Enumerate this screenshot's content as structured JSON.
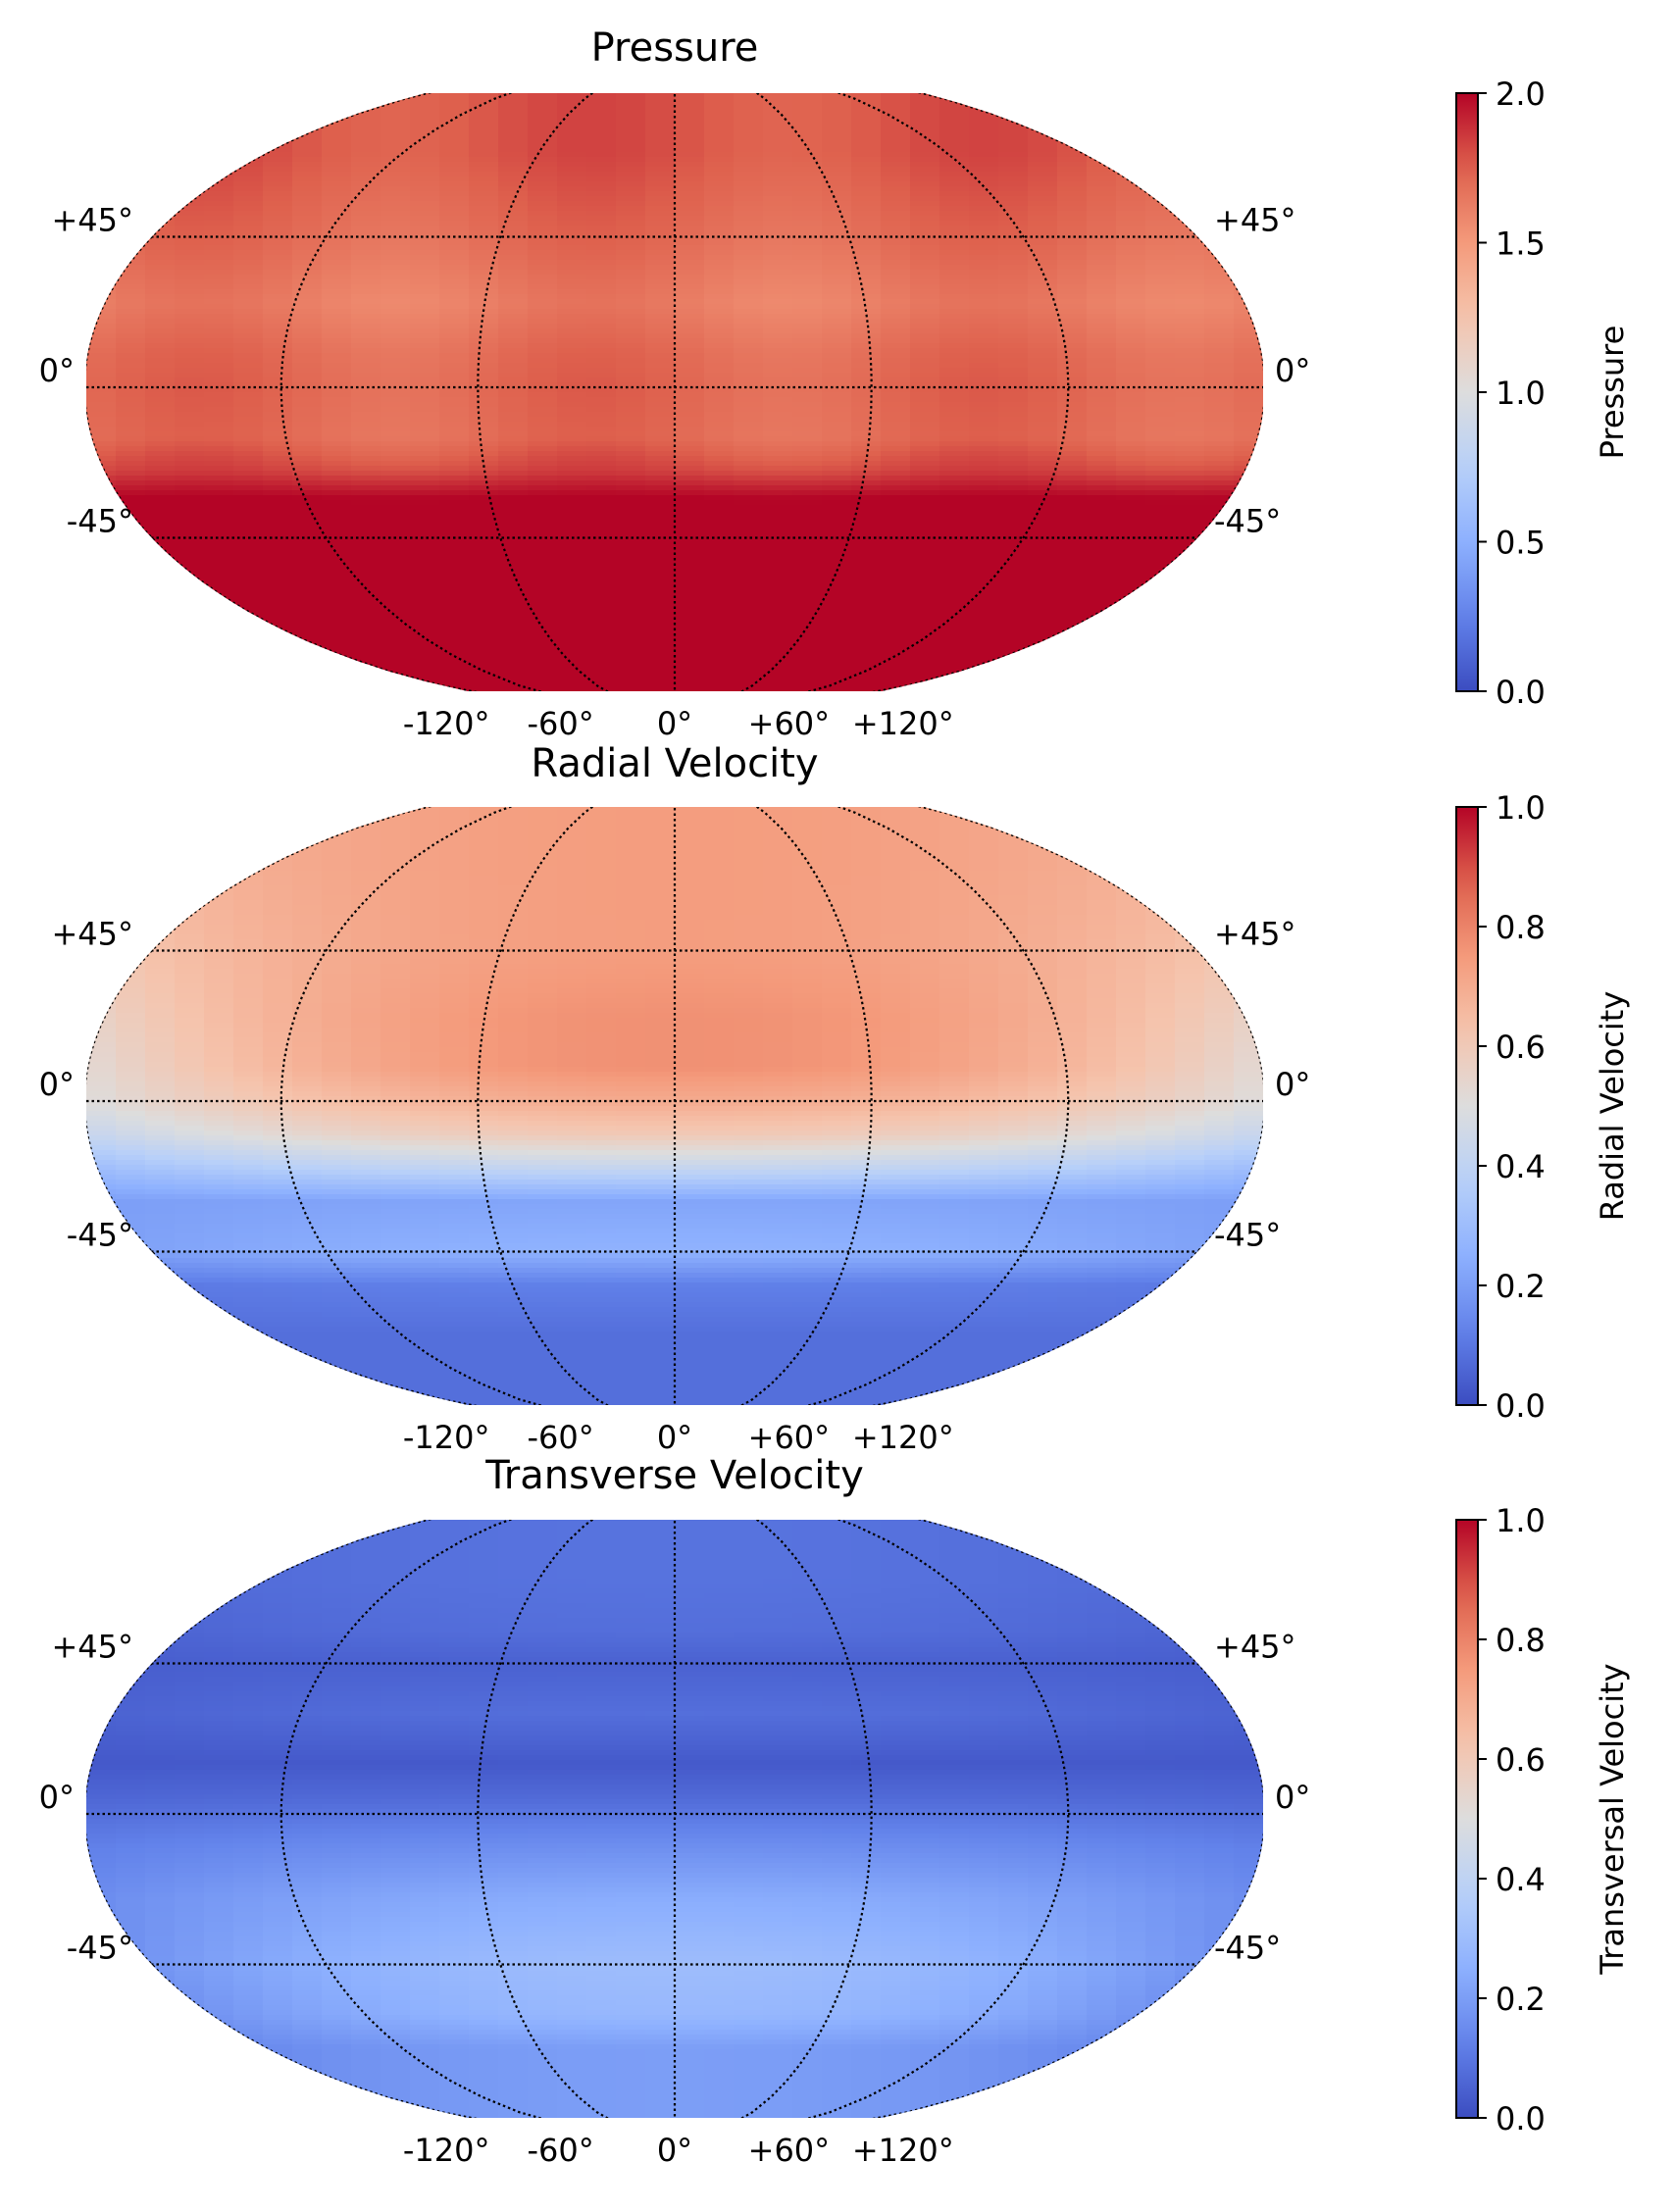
{
  "chart_data": [
    {
      "type": "heatmap",
      "projection": "kavrayskiy-like map (elliptical, truncated poles)",
      "title": "Pressure",
      "colormap": "coolwarm",
      "colorbar": {
        "label": "Pressure",
        "min": 0.0,
        "max": 2.0,
        "ticks": [
          "0.0",
          "0.5",
          "1.0",
          "1.5",
          "2.0"
        ]
      },
      "lat_ticks": {
        "left": [
          "+45°",
          "0°",
          "-45°"
        ],
        "right": [
          "+45°",
          "0°",
          "-45°"
        ]
      },
      "lon_ticks": [
        "-120°",
        "-60°",
        "0°",
        "+60°",
        "+120°"
      ],
      "field": {
        "lat_profile": [
          [
            70,
            1.78
          ],
          [
            45,
            1.7
          ],
          [
            25,
            1.62
          ],
          [
            10,
            1.7
          ],
          [
            0,
            1.72
          ],
          [
            -15,
            1.7
          ],
          [
            -25,
            1.82
          ],
          [
            -33,
            2.0
          ],
          [
            -70,
            2.0
          ]
        ],
        "lon_amplitude": 0.05
      }
    },
    {
      "type": "heatmap",
      "projection": "kavrayskiy-like map (elliptical, truncated poles)",
      "title": "Radial Velocity",
      "colormap": "coolwarm",
      "colorbar": {
        "label": "Radial Velocity",
        "min": 0.0,
        "max": 1.0,
        "ticks": [
          "0.0",
          "0.2",
          "0.4",
          "0.6",
          "0.8",
          "1.0"
        ]
      },
      "lat_ticks": {
        "left": [
          "+45°",
          "0°",
          "-45°"
        ],
        "right": [
          "+45°",
          "0°",
          "-45°"
        ]
      },
      "lon_ticks": [
        "-120°",
        "-60°",
        "0°",
        "+60°",
        "+120°"
      ],
      "field": {
        "lat_profile": [
          [
            70,
            0.74
          ],
          [
            45,
            0.74
          ],
          [
            25,
            0.77
          ],
          [
            10,
            0.77
          ],
          [
            0,
            0.7
          ],
          [
            -10,
            0.6
          ],
          [
            -20,
            0.42
          ],
          [
            -30,
            0.22
          ],
          [
            -45,
            0.26
          ],
          [
            -55,
            0.12
          ],
          [
            -70,
            0.08
          ]
        ],
        "edge_profile": [
          [
            70,
            0.64
          ],
          [
            45,
            0.6
          ],
          [
            25,
            0.55
          ],
          [
            10,
            0.52
          ],
          [
            0,
            0.5
          ],
          [
            -10,
            0.42
          ],
          [
            -20,
            0.3
          ],
          [
            -30,
            0.2
          ],
          [
            -45,
            0.2
          ],
          [
            -55,
            0.1
          ],
          [
            -70,
            0.08
          ]
        ],
        "lon_amplitude": 0.0
      }
    },
    {
      "type": "heatmap",
      "projection": "kavrayskiy-like map (elliptical, truncated poles)",
      "title": "Transverse Velocity",
      "colormap": "coolwarm",
      "colorbar": {
        "label": "Transversal Velocity",
        "min": 0.0,
        "max": 1.0,
        "ticks": [
          "0.0",
          "0.2",
          "0.4",
          "0.6",
          "0.8",
          "1.0"
        ]
      },
      "lat_ticks": {
        "left": [
          "+45°",
          "0°",
          "-45°"
        ],
        "right": [
          "+45°",
          "0°",
          "-45°"
        ]
      },
      "lon_ticks": [
        "-120°",
        "-60°",
        "0°",
        "+60°",
        "+120°"
      ],
      "field": {
        "lat_profile": [
          [
            70,
            0.09
          ],
          [
            55,
            0.08
          ],
          [
            45,
            0.05
          ],
          [
            30,
            0.08
          ],
          [
            15,
            0.03
          ],
          [
            5,
            0.07
          ],
          [
            -10,
            0.16
          ],
          [
            -25,
            0.24
          ],
          [
            -45,
            0.3
          ],
          [
            -60,
            0.28
          ],
          [
            -70,
            0.2
          ]
        ],
        "edge_profile": [
          [
            70,
            0.06
          ],
          [
            55,
            0.05
          ],
          [
            45,
            0.04
          ],
          [
            30,
            0.05
          ],
          [
            15,
            0.03
          ],
          [
            5,
            0.06
          ],
          [
            -10,
            0.12
          ],
          [
            -25,
            0.15
          ],
          [
            -45,
            0.14
          ],
          [
            -60,
            0.1
          ],
          [
            -70,
            0.08
          ]
        ],
        "lon_amplitude": 0.0
      }
    }
  ]
}
